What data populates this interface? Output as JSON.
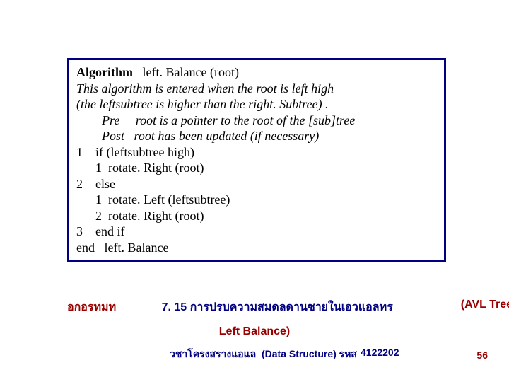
{
  "algorithm": {
    "header_bold": "Algorithm",
    "header_rest": "   left. Balance (root)",
    "desc1": "This algorithm is entered when the root is left high",
    "desc2": "(the leftsubtree is higher than the right. Subtree) .",
    "pre": "        Pre     root is a pointer to the root of the [sub]tree",
    "post": "        Post   root has been updated (if necessary)",
    "l1": "1    if (leftsubtree high)",
    "l1a": "      1  rotate. Right (root)",
    "l2": "2    else",
    "l2a": "      1  rotate. Left (leftsubtree)",
    "l2b": "      2  rotate. Right (root)",
    "l3": "3    end if",
    "lend": "end   left. Balance"
  },
  "caption": {
    "algo_label": "อกอรทมท",
    "main_text": "7. 15 การปรบความสมดลดานซายในเอวแอลทร",
    "avl_label": "(AVL Tree",
    "line2": "Left Balance)"
  },
  "footer": {
    "left": "วชาโครงสรางแอแล",
    "mid": "(Data Structure) รหส",
    "code": "4122202"
  },
  "page_number": "56",
  "colors": {
    "box_border": "#000080",
    "caption_red": "#990000",
    "caption_blue": "#000080",
    "text_black": "#000000",
    "background": "#ffffff"
  }
}
